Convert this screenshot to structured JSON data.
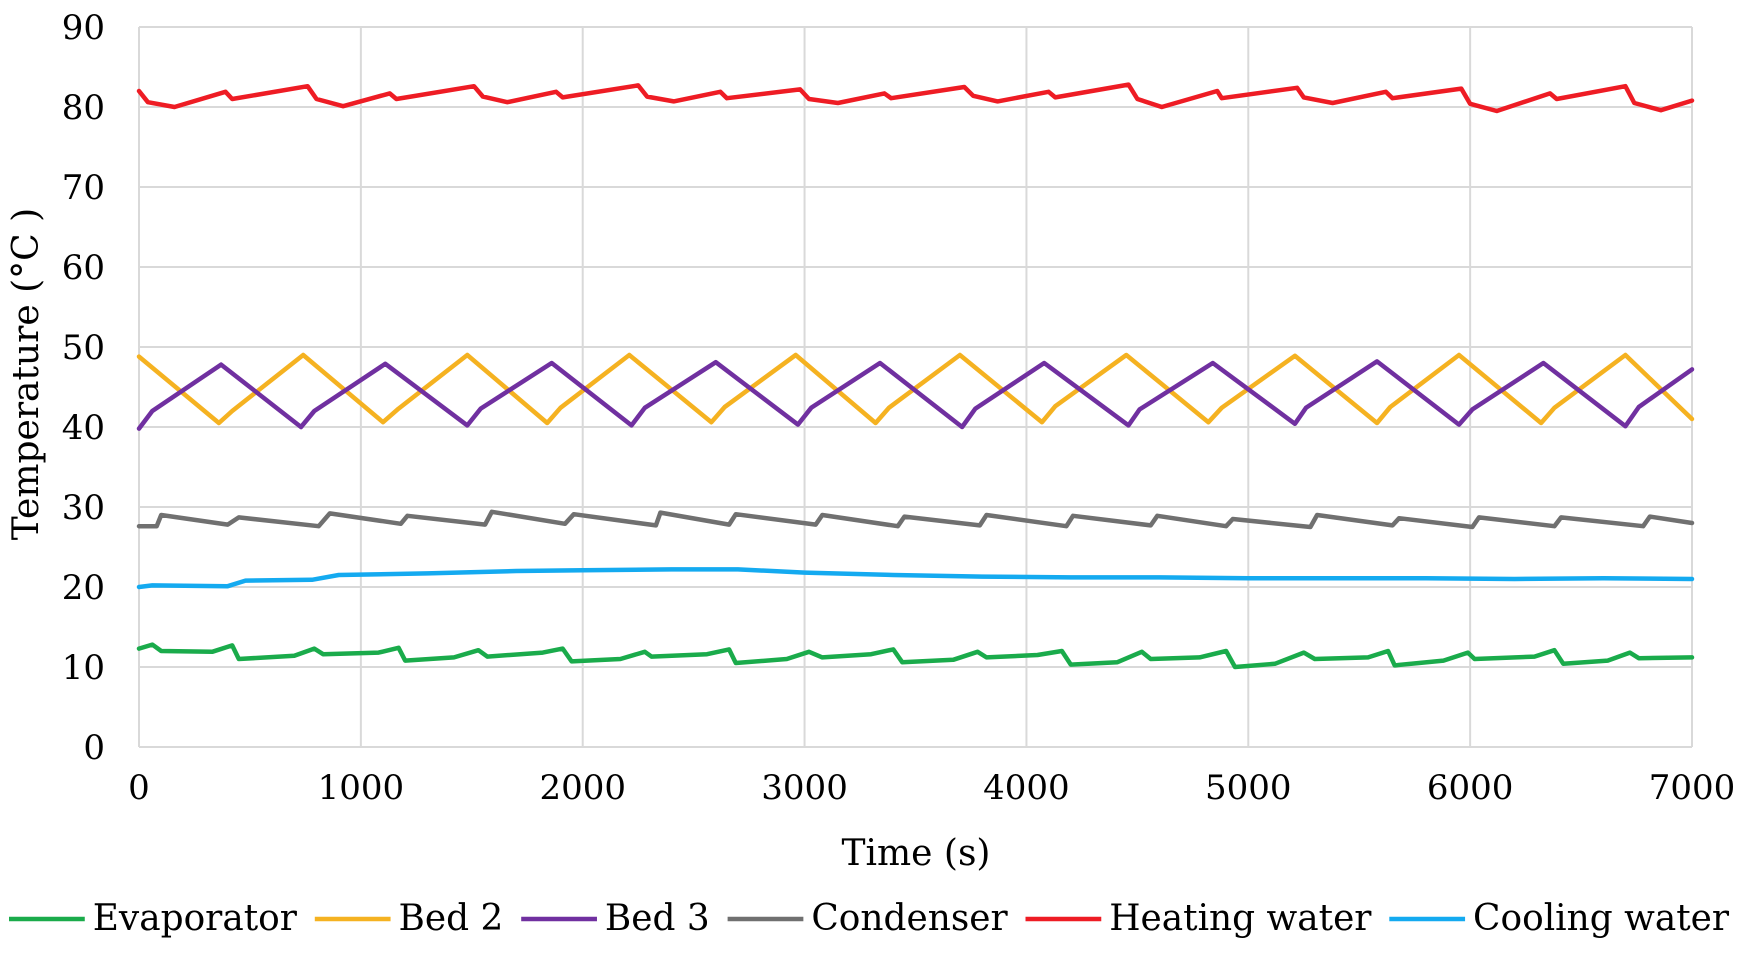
{
  "chart_data": {
    "type": "line",
    "title": "",
    "xlabel": "Time (s)",
    "ylabel": "Temperature (°C )",
    "xlim": [
      0,
      7000
    ],
    "ylim": [
      0,
      90
    ],
    "xticks": [
      0,
      1000,
      2000,
      3000,
      4000,
      5000,
      6000,
      7000
    ],
    "yticks": [
      0,
      10,
      20,
      30,
      40,
      50,
      60,
      70,
      80,
      90
    ],
    "grid": "vertical and horizontal",
    "legend_position": "bottom",
    "series": [
      {
        "name": "Evaporator",
        "color": "#1aab4b",
        "points": [
          [
            0,
            12.3
          ],
          [
            60,
            12.8
          ],
          [
            100,
            12.0
          ],
          [
            330,
            11.9
          ],
          [
            420,
            12.7
          ],
          [
            450,
            11.0
          ],
          [
            700,
            11.4
          ],
          [
            790,
            12.3
          ],
          [
            830,
            11.6
          ],
          [
            1080,
            11.8
          ],
          [
            1170,
            12.4
          ],
          [
            1200,
            10.8
          ],
          [
            1420,
            11.2
          ],
          [
            1530,
            12.1
          ],
          [
            1570,
            11.3
          ],
          [
            1820,
            11.8
          ],
          [
            1910,
            12.3
          ],
          [
            1950,
            10.7
          ],
          [
            2170,
            11.0
          ],
          [
            2280,
            11.9
          ],
          [
            2310,
            11.3
          ],
          [
            2560,
            11.6
          ],
          [
            2660,
            12.2
          ],
          [
            2690,
            10.5
          ],
          [
            2920,
            11.0
          ],
          [
            3020,
            11.9
          ],
          [
            3080,
            11.2
          ],
          [
            3300,
            11.6
          ],
          [
            3400,
            12.2
          ],
          [
            3440,
            10.6
          ],
          [
            3670,
            10.9
          ],
          [
            3780,
            11.9
          ],
          [
            3820,
            11.2
          ],
          [
            4050,
            11.5
          ],
          [
            4160,
            12.0
          ],
          [
            4200,
            10.3
          ],
          [
            4410,
            10.6
          ],
          [
            4520,
            11.9
          ],
          [
            4560,
            11.0
          ],
          [
            4780,
            11.2
          ],
          [
            4900,
            12.0
          ],
          [
            4940,
            10.0
          ],
          [
            5120,
            10.4
          ],
          [
            5250,
            11.8
          ],
          [
            5300,
            11.0
          ],
          [
            5540,
            11.2
          ],
          [
            5630,
            12.0
          ],
          [
            5660,
            10.2
          ],
          [
            5880,
            10.8
          ],
          [
            5990,
            11.8
          ],
          [
            6020,
            11.0
          ],
          [
            6290,
            11.3
          ],
          [
            6380,
            12.1
          ],
          [
            6420,
            10.4
          ],
          [
            6620,
            10.8
          ],
          [
            6720,
            11.8
          ],
          [
            6760,
            11.1
          ],
          [
            7000,
            11.2
          ]
        ]
      },
      {
        "name": "Bed 2",
        "color": "#f5b221",
        "points": [
          [
            0,
            48.8
          ],
          [
            360,
            40.5
          ],
          [
            420,
            42.0
          ],
          [
            740,
            49.0
          ],
          [
            1100,
            40.6
          ],
          [
            1170,
            42.3
          ],
          [
            1480,
            49.0
          ],
          [
            1840,
            40.5
          ],
          [
            1900,
            42.4
          ],
          [
            2210,
            49.0
          ],
          [
            2580,
            40.6
          ],
          [
            2640,
            42.5
          ],
          [
            2960,
            49.0
          ],
          [
            3320,
            40.5
          ],
          [
            3380,
            42.4
          ],
          [
            3700,
            49.0
          ],
          [
            4070,
            40.6
          ],
          [
            4130,
            42.6
          ],
          [
            4450,
            49.0
          ],
          [
            4820,
            40.6
          ],
          [
            4880,
            42.4
          ],
          [
            5210,
            48.9
          ],
          [
            5580,
            40.5
          ],
          [
            5640,
            42.5
          ],
          [
            5950,
            49.0
          ],
          [
            6320,
            40.5
          ],
          [
            6380,
            42.4
          ],
          [
            6700,
            49.0
          ],
          [
            7000,
            41.0
          ]
        ]
      },
      {
        "name": "Bed 3",
        "color": "#7030a0",
        "points": [
          [
            0,
            39.8
          ],
          [
            60,
            42.0
          ],
          [
            370,
            47.8
          ],
          [
            730,
            40.0
          ],
          [
            790,
            42.0
          ],
          [
            1110,
            47.9
          ],
          [
            1480,
            40.2
          ],
          [
            1540,
            42.3
          ],
          [
            1860,
            48.0
          ],
          [
            2220,
            40.2
          ],
          [
            2280,
            42.4
          ],
          [
            2600,
            48.1
          ],
          [
            2970,
            40.3
          ],
          [
            3030,
            42.4
          ],
          [
            3340,
            48.0
          ],
          [
            3710,
            40.0
          ],
          [
            3770,
            42.3
          ],
          [
            4080,
            48.0
          ],
          [
            4460,
            40.2
          ],
          [
            4510,
            42.2
          ],
          [
            4840,
            48.0
          ],
          [
            5210,
            40.4
          ],
          [
            5260,
            42.4
          ],
          [
            5580,
            48.2
          ],
          [
            5950,
            40.3
          ],
          [
            6010,
            42.2
          ],
          [
            6330,
            48.0
          ],
          [
            6700,
            40.1
          ],
          [
            6760,
            42.5
          ],
          [
            7000,
            47.2
          ]
        ]
      },
      {
        "name": "Condenser",
        "color": "#707070",
        "points": [
          [
            0,
            27.6
          ],
          [
            80,
            27.6
          ],
          [
            100,
            29.0
          ],
          [
            400,
            27.8
          ],
          [
            450,
            28.7
          ],
          [
            810,
            27.6
          ],
          [
            860,
            29.2
          ],
          [
            1180,
            27.9
          ],
          [
            1210,
            28.9
          ],
          [
            1560,
            27.8
          ],
          [
            1590,
            29.4
          ],
          [
            1920,
            27.9
          ],
          [
            1960,
            29.1
          ],
          [
            2330,
            27.7
          ],
          [
            2350,
            29.3
          ],
          [
            2660,
            27.8
          ],
          [
            2690,
            29.1
          ],
          [
            3050,
            27.8
          ],
          [
            3080,
            29.0
          ],
          [
            3420,
            27.6
          ],
          [
            3450,
            28.8
          ],
          [
            3790,
            27.7
          ],
          [
            3820,
            29.0
          ],
          [
            4180,
            27.6
          ],
          [
            4210,
            28.9
          ],
          [
            4560,
            27.7
          ],
          [
            4590,
            28.9
          ],
          [
            4900,
            27.6
          ],
          [
            4930,
            28.5
          ],
          [
            5280,
            27.5
          ],
          [
            5310,
            29.0
          ],
          [
            5650,
            27.7
          ],
          [
            5680,
            28.6
          ],
          [
            6010,
            27.5
          ],
          [
            6040,
            28.7
          ],
          [
            6380,
            27.6
          ],
          [
            6410,
            28.7
          ],
          [
            6780,
            27.6
          ],
          [
            6810,
            28.8
          ],
          [
            7000,
            28.0
          ]
        ]
      },
      {
        "name": "Heating water",
        "color": "#ee1c24",
        "points": [
          [
            0,
            82.0
          ],
          [
            40,
            80.6
          ],
          [
            160,
            80.0
          ],
          [
            390,
            81.9
          ],
          [
            420,
            81.0
          ],
          [
            760,
            82.6
          ],
          [
            800,
            81.0
          ],
          [
            920,
            80.1
          ],
          [
            1130,
            81.7
          ],
          [
            1160,
            81.0
          ],
          [
            1510,
            82.6
          ],
          [
            1550,
            81.3
          ],
          [
            1660,
            80.6
          ],
          [
            1880,
            81.9
          ],
          [
            1910,
            81.2
          ],
          [
            2250,
            82.7
          ],
          [
            2290,
            81.3
          ],
          [
            2410,
            80.7
          ],
          [
            2620,
            81.9
          ],
          [
            2650,
            81.1
          ],
          [
            2980,
            82.2
          ],
          [
            3020,
            81.0
          ],
          [
            3150,
            80.5
          ],
          [
            3360,
            81.7
          ],
          [
            3390,
            81.1
          ],
          [
            3720,
            82.5
          ],
          [
            3760,
            81.4
          ],
          [
            3870,
            80.7
          ],
          [
            4100,
            81.9
          ],
          [
            4130,
            81.2
          ],
          [
            4460,
            82.8
          ],
          [
            4500,
            81.0
          ],
          [
            4610,
            80.0
          ],
          [
            4860,
            82.0
          ],
          [
            4880,
            81.1
          ],
          [
            5220,
            82.4
          ],
          [
            5250,
            81.2
          ],
          [
            5380,
            80.5
          ],
          [
            5620,
            81.9
          ],
          [
            5650,
            81.1
          ],
          [
            5960,
            82.3
          ],
          [
            6000,
            80.4
          ],
          [
            6120,
            79.5
          ],
          [
            6360,
            81.7
          ],
          [
            6390,
            81.0
          ],
          [
            6700,
            82.6
          ],
          [
            6740,
            80.5
          ],
          [
            6860,
            79.6
          ],
          [
            7000,
            80.8
          ]
        ]
      },
      {
        "name": "Cooling water",
        "color": "#14aaf0",
        "points": [
          [
            0,
            20.0
          ],
          [
            60,
            20.2
          ],
          [
            400,
            20.1
          ],
          [
            480,
            20.8
          ],
          [
            780,
            20.9
          ],
          [
            900,
            21.5
          ],
          [
            1300,
            21.7
          ],
          [
            1700,
            22.0
          ],
          [
            2000,
            22.1
          ],
          [
            2400,
            22.2
          ],
          [
            2700,
            22.2
          ],
          [
            3000,
            21.8
          ],
          [
            3400,
            21.5
          ],
          [
            3800,
            21.3
          ],
          [
            4200,
            21.2
          ],
          [
            4600,
            21.2
          ],
          [
            5000,
            21.1
          ],
          [
            5400,
            21.1
          ],
          [
            5800,
            21.1
          ],
          [
            6200,
            21.0
          ],
          [
            6600,
            21.1
          ],
          [
            7000,
            21.0
          ]
        ]
      }
    ]
  }
}
